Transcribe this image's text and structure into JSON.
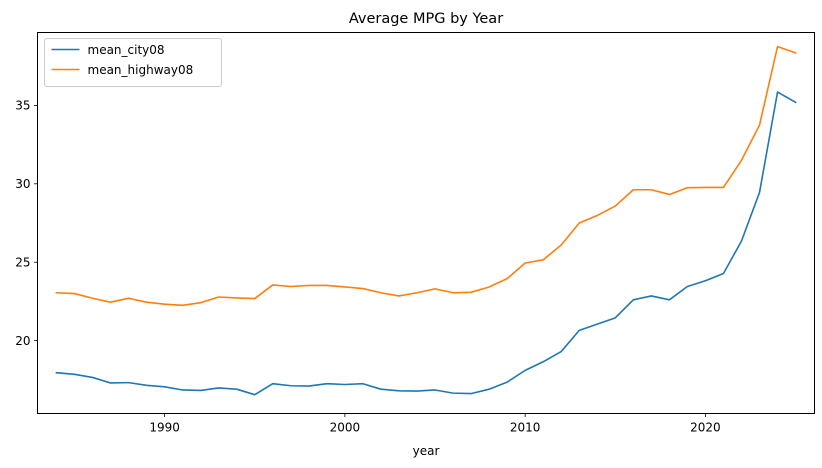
{
  "chart_data": {
    "type": "line",
    "title": "Average MPG by Year",
    "xlabel": "year",
    "ylabel": "",
    "xlim": [
      1982.95,
      2026.05
    ],
    "ylim": [
      15.35,
      39.65
    ],
    "xticks": [
      1990,
      2000,
      2010,
      2020
    ],
    "yticks": [
      20,
      25,
      30,
      35
    ],
    "grid": false,
    "legend_position": "upper-left",
    "x": [
      1984,
      1985,
      1986,
      1987,
      1988,
      1989,
      1990,
      1991,
      1992,
      1993,
      1994,
      1995,
      1996,
      1997,
      1998,
      1999,
      2000,
      2001,
      2002,
      2003,
      2004,
      2005,
      2006,
      2007,
      2008,
      2009,
      2010,
      2011,
      2012,
      2013,
      2014,
      2015,
      2016,
      2017,
      2018,
      2019,
      2020,
      2021,
      2022,
      2023,
      2024,
      2025
    ],
    "series": [
      {
        "name": "mean_city08",
        "color": "#1f77b4",
        "values": [
          17.95,
          17.85,
          17.65,
          17.3,
          17.32,
          17.15,
          17.05,
          16.85,
          16.82,
          16.98,
          16.9,
          16.55,
          17.25,
          17.12,
          17.1,
          17.25,
          17.2,
          17.25,
          16.9,
          16.8,
          16.78,
          16.85,
          16.65,
          16.62,
          16.9,
          17.35,
          18.1,
          18.65,
          19.3,
          20.65,
          21.05,
          21.45,
          22.6,
          22.85,
          22.6,
          23.45,
          23.82,
          24.28,
          26.35,
          29.45,
          35.85,
          35.2
        ]
      },
      {
        "name": "mean_highway08",
        "color": "#ff7f0e",
        "values": [
          23.05,
          23.0,
          22.7,
          22.45,
          22.7,
          22.45,
          22.32,
          22.25,
          22.42,
          22.78,
          22.72,
          22.68,
          23.55,
          23.45,
          23.52,
          23.52,
          23.42,
          23.32,
          23.05,
          22.85,
          23.05,
          23.3,
          23.05,
          23.08,
          23.42,
          23.95,
          24.95,
          25.15,
          26.1,
          27.5,
          27.98,
          28.58,
          29.62,
          29.62,
          29.32,
          29.75,
          29.77,
          29.77,
          31.5,
          33.75,
          38.75,
          38.35
        ]
      }
    ]
  }
}
